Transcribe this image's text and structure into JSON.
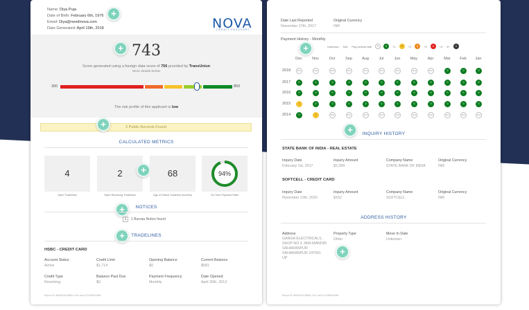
{
  "left": {
    "applicant": {
      "name_label": "Name:",
      "name": "Diya Puja",
      "dob_label": "Date of Birth:",
      "dob": "February 6th, 1976",
      "email_label": "Email:",
      "email": "Diya@needinova.com",
      "generated_label": "Date Generated:",
      "generated": "April 19th, 2018"
    },
    "logo": {
      "name": "NOVA",
      "sub": "CREDIT PASSPORT"
    },
    "score": {
      "value": "743",
      "note_pre": "Score generated using a foreign data score of",
      "foreign_score": "756",
      "note_mid": "provided by",
      "provider": "TransUnion",
      "more": "More details below",
      "min": "300",
      "max": "850",
      "risk_pre": "The risk profile of this applicant is",
      "risk": "low"
    },
    "public_records": "2 Public Records Found",
    "metrics_title": "CALCULATED METRICS",
    "metrics": [
      {
        "value": "4",
        "label": "Open Tradelines"
      },
      {
        "value": "2",
        "label": "Open Revolving Tradelines"
      },
      {
        "value": "68",
        "label": "Age of Oldest Tradeline (months)"
      },
      {
        "value": "94%",
        "label": "On Time Payment Ratio",
        "ratio": 0.94
      }
    ],
    "notices_title": "NOTICES",
    "notice_count": "1",
    "notice_text": "1 Bureau Notice found",
    "tradelines_title": "TRADELINES",
    "account": {
      "title": "HSBC - CREDIT CARD",
      "fields": [
        {
          "k": "Account Status",
          "v": "Active"
        },
        {
          "k": "Credit Limit",
          "v": "$1,714"
        },
        {
          "k": "Opening Balance",
          "v": "$0"
        },
        {
          "k": "Current Balance",
          "v": "$581"
        },
        {
          "k": "Credit Type",
          "v": "Revolving"
        },
        {
          "k": "Balance Past Due",
          "v": "$0"
        },
        {
          "k": "Payment Frequency",
          "v": "Monthly"
        },
        {
          "k": "Date Opened",
          "v": "April 20th, 2013"
        }
      ]
    },
    "footer": "Report ID: 8b60b240-8880c-11e7-aa13-37e0f5c0098e"
  },
  "right": {
    "reported_label": "Date Last Reported",
    "reported": "November 27th, 2017",
    "currency_label": "Original Currency",
    "currency": "INR",
    "ph_title": "Payment History - Monthly",
    "legend": {
      "unknown": "Unknown",
      "na": "N/A",
      "pay_late": "Pay periods late",
      "values": [
        "0",
        "+1",
        "+2",
        "+3",
        "+4",
        "5+"
      ]
    },
    "months": [
      "Dec",
      "Nov",
      "Oct",
      "Sep",
      "Aug",
      "Jul",
      "Jun",
      "May",
      "Apr",
      "Mar",
      "Feb",
      "Jan"
    ],
    "years": [
      {
        "year": "2018",
        "cells": [
          "na",
          "na",
          "na",
          "na",
          "na",
          "na",
          "na",
          "na",
          "na",
          "g",
          "g",
          "g"
        ]
      },
      {
        "year": "2017",
        "cells": [
          "g",
          "g",
          "g",
          "g",
          "g",
          "g",
          "g",
          "g",
          "g",
          "g",
          "g",
          "g"
        ]
      },
      {
        "year": "2016",
        "cells": [
          "g",
          "g",
          "g",
          "g",
          "g",
          "g",
          "g",
          "g",
          "g",
          "g",
          "g",
          "g"
        ]
      },
      {
        "year": "2015",
        "cells": [
          "y",
          "g",
          "g",
          "g",
          "g",
          "g",
          "g",
          "g",
          "g",
          "g",
          "g",
          "g"
        ]
      },
      {
        "year": "2014",
        "cells": [
          "g",
          "y",
          "na",
          "na",
          "na",
          "na",
          "na",
          "na",
          "na",
          "na",
          "na",
          "na"
        ]
      }
    ],
    "na_text": "N/A",
    "zero_text": "0",
    "one_text": "1",
    "inquiry_title": "INQUIRY HISTORY",
    "inquiries": [
      {
        "title": "STATE BANK OF INDIA - REAL ESTATE",
        "fields": [
          {
            "k": "Inquiry Date",
            "v": "February 1st, 2017"
          },
          {
            "k": "Inquiry Amount",
            "v": "$2,284"
          },
          {
            "k": "Company Name",
            "v": "STATE BANK OF INDIA"
          },
          {
            "k": "Original Currency",
            "v": "INR"
          }
        ]
      },
      {
        "title": "SOFTCELL - CREDIT CARD",
        "fields": [
          {
            "k": "Inquiry Date",
            "v": "November 12th, 2016"
          },
          {
            "k": "Inquiry Amount",
            "v": "$152"
          },
          {
            "k": "Company Name",
            "v": "SOFTCELL"
          },
          {
            "k": "Original Currency",
            "v": "INR"
          }
        ]
      }
    ],
    "address_title": "ADDRESS HISTORY",
    "address": {
      "address_label": "Address",
      "address_lines": [
        "GANGA ELECTRICALS,",
        "SHOP NO 3 JAIN MANDIR",
        "SAHARANPUR",
        "SAHARANPUR 247001",
        "UP"
      ],
      "property_label": "Property Type",
      "property": "Other",
      "move_label": "Move In Date",
      "move": "Unknown"
    },
    "footer": "Report ID: 8b60b240-8880c-11e7-aa13-37e0f5c0098e"
  },
  "colors": {
    "navy": "#233055",
    "fab": "#7fd3bc",
    "accent": "#2c5aa0",
    "green": "#0b7b1f",
    "yellow": "#f4c430"
  },
  "icons": {
    "fab": "plus-icon"
  }
}
